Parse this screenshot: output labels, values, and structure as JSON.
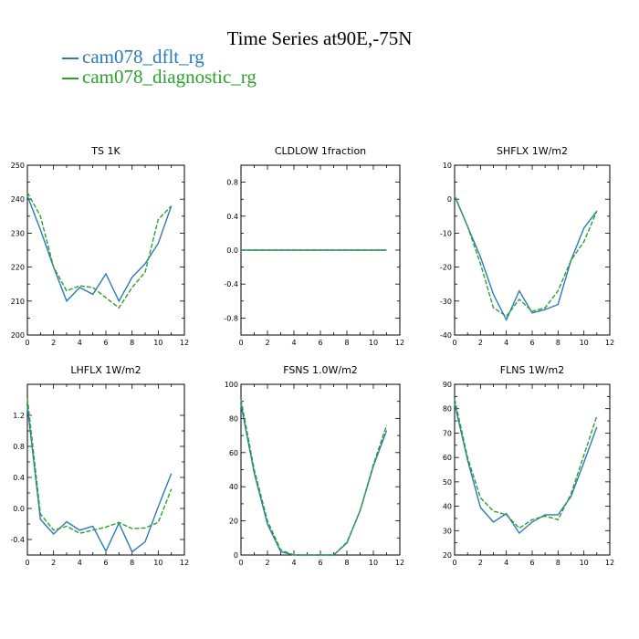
{
  "title": "Time Series at90E,-75N",
  "legend": [
    {
      "name": "cam078_dflt_rg",
      "color": "#2b7bb9"
    },
    {
      "name": "cam078_diagnostic_rg",
      "color": "#2ca02c"
    }
  ],
  "chart_data": [
    {
      "type": "line",
      "title": "TS   1K",
      "x": [
        0,
        1,
        2,
        3,
        4,
        5,
        6,
        7,
        8,
        9,
        10,
        11
      ],
      "xlim": [
        0,
        12
      ],
      "xticks": [
        0,
        2,
        4,
        6,
        8,
        10,
        12
      ],
      "ylim": [
        200,
        250
      ],
      "yticks": [
        200,
        210,
        220,
        230,
        240,
        250
      ],
      "ytick_labels": [
        "200",
        "210",
        "220",
        "230",
        "240",
        "250"
      ],
      "series": [
        {
          "name": "cam078_dflt_rg",
          "values": [
            241,
            231,
            220,
            210,
            214,
            212,
            218,
            210,
            217,
            221,
            227,
            238
          ]
        },
        {
          "name": "cam078_diagnostic_rg",
          "values": [
            242,
            235,
            220,
            213,
            214.5,
            214,
            211,
            208,
            214,
            218.5,
            234,
            238
          ]
        }
      ]
    },
    {
      "type": "line",
      "title": "CLDLOW   1fraction",
      "x": [
        0,
        1,
        2,
        3,
        4,
        5,
        6,
        7,
        8,
        9,
        10,
        11
      ],
      "xlim": [
        0,
        12
      ],
      "xticks": [
        0,
        2,
        4,
        6,
        8,
        10,
        12
      ],
      "ylim": [
        -1,
        1
      ],
      "yticks": [
        -0.8,
        -0.4,
        0,
        0.4,
        0.8
      ],
      "ytick_labels": [
        "-0.8",
        "-0.4",
        "0.0",
        "0.4",
        "0.8"
      ],
      "series": [
        {
          "name": "cam078_dflt_rg",
          "values": [
            0,
            0,
            0,
            0,
            0,
            0,
            0,
            0,
            0,
            0,
            0,
            0
          ]
        },
        {
          "name": "cam078_diagnostic_rg",
          "values": [
            0,
            0,
            0,
            0,
            0,
            0,
            0,
            0,
            0,
            0,
            0,
            0
          ]
        }
      ]
    },
    {
      "type": "line",
      "title": "SHFLX   1W/m2",
      "x": [
        0,
        1,
        2,
        3,
        4,
        5,
        6,
        7,
        8,
        9,
        10,
        11
      ],
      "xlim": [
        0,
        12
      ],
      "xticks": [
        0,
        2,
        4,
        6,
        8,
        10,
        12
      ],
      "ylim": [
        -40,
        10
      ],
      "yticks": [
        -40,
        -30,
        -20,
        -10,
        0,
        10
      ],
      "ytick_labels": [
        "-40",
        "-30",
        "-20",
        "-10",
        "0",
        "10"
      ],
      "series": [
        {
          "name": "cam078_dflt_rg",
          "values": [
            1,
            -8,
            -17,
            -28,
            -35.5,
            -27,
            -33.5,
            -32.5,
            -31,
            -18,
            -8.5,
            -3.5
          ]
        },
        {
          "name": "cam078_diagnostic_rg",
          "values": [
            1,
            -8,
            -19,
            -32,
            -34.5,
            -29.5,
            -33,
            -32,
            -27,
            -18,
            -12.5,
            -3.5
          ]
        }
      ]
    },
    {
      "type": "line",
      "title": "LHFLX   1W/m2",
      "x": [
        0,
        1,
        2,
        3,
        4,
        5,
        6,
        7,
        8,
        9,
        10,
        11
      ],
      "xlim": [
        0,
        12
      ],
      "xticks": [
        0,
        2,
        4,
        6,
        8,
        10,
        12
      ],
      "ylim": [
        -0.6,
        1.6
      ],
      "yticks": [
        -0.4,
        0,
        0.4,
        0.8,
        1.2
      ],
      "ytick_labels": [
        "-0.4",
        "0.0",
        "0.4",
        "0.8",
        "1.2"
      ],
      "series": [
        {
          "name": "cam078_dflt_rg",
          "values": [
            1.32,
            -0.14,
            -0.33,
            -0.17,
            -0.28,
            -0.23,
            -0.55,
            -0.19,
            -0.56,
            -0.43,
            0.02,
            0.45
          ]
        },
        {
          "name": "cam078_diagnostic_rg",
          "values": [
            1.42,
            -0.07,
            -0.28,
            -0.23,
            -0.32,
            -0.28,
            -0.24,
            -0.18,
            -0.26,
            -0.25,
            -0.18,
            0.25
          ]
        }
      ]
    },
    {
      "type": "line",
      "title": "FSNS   1.0W/m2",
      "x": [
        0,
        1,
        2,
        3,
        4,
        5,
        6,
        7,
        8,
        9,
        10,
        11
      ],
      "xlim": [
        0,
        12
      ],
      "xticks": [
        0,
        2,
        4,
        6,
        8,
        10,
        12
      ],
      "ylim": [
        0,
        100
      ],
      "yticks": [
        0,
        20,
        40,
        60,
        80,
        100
      ],
      "ytick_labels": [
        "0",
        "20",
        "40",
        "60",
        "80",
        "100"
      ],
      "series": [
        {
          "name": "cam078_dflt_rg",
          "values": [
            88,
            48,
            18,
            2,
            0,
            0,
            0,
            0,
            7,
            26,
            52,
            73
          ]
        },
        {
          "name": "cam078_diagnostic_rg",
          "values": [
            91,
            50,
            20,
            3,
            0,
            0,
            0,
            0,
            7.5,
            26,
            53,
            76
          ]
        }
      ]
    },
    {
      "type": "line",
      "title": "FLNS   1W/m2",
      "x": [
        0,
        1,
        2,
        3,
        4,
        5,
        6,
        7,
        8,
        9,
        10,
        11
      ],
      "xlim": [
        0,
        12
      ],
      "xticks": [
        0,
        2,
        4,
        6,
        8,
        10,
        12
      ],
      "ylim": [
        20,
        90
      ],
      "yticks": [
        20,
        30,
        40,
        50,
        60,
        70,
        80,
        90
      ],
      "ytick_labels": [
        "20",
        "30",
        "40",
        "50",
        "60",
        "70",
        "80",
        "90"
      ],
      "series": [
        {
          "name": "cam078_dflt_rg",
          "values": [
            82,
            59,
            39.5,
            33.5,
            37,
            29,
            33.5,
            36.5,
            36.5,
            44,
            58,
            72.5
          ]
        },
        {
          "name": "cam078_diagnostic_rg",
          "values": [
            84,
            60,
            43.5,
            38,
            36.5,
            31,
            34.5,
            36,
            34.5,
            45,
            61,
            77
          ]
        }
      ]
    }
  ]
}
